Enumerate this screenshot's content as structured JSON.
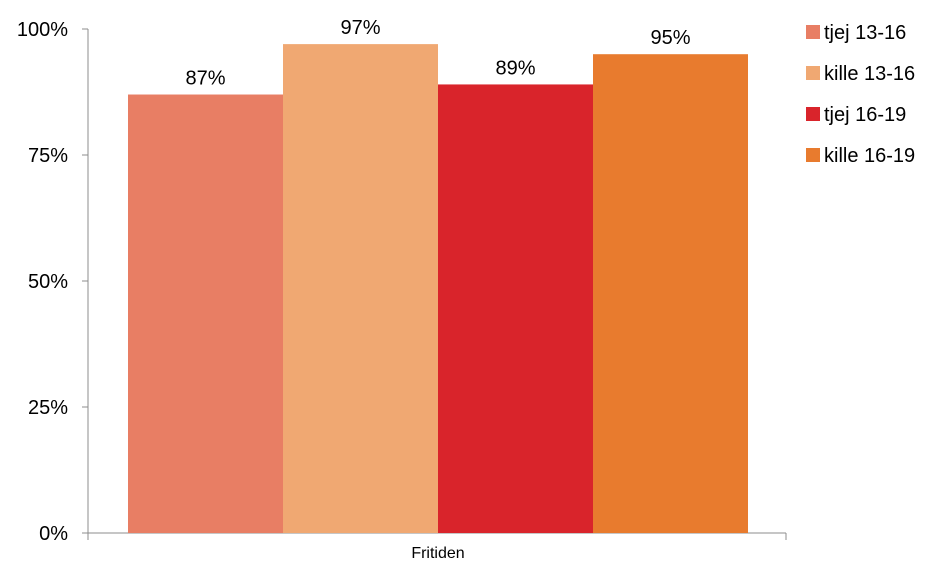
{
  "chart_data": {
    "type": "bar",
    "categories": [
      "Fritiden"
    ],
    "series": [
      {
        "name": "tjej 13-16",
        "color": "#E87E64",
        "values": [
          87
        ],
        "label": "87%"
      },
      {
        "name": "kille 13-16",
        "color": "#F0A872",
        "values": [
          97
        ],
        "label": "97%"
      },
      {
        "name": "tjej 16-19",
        "color": "#D9242B",
        "values": [
          89
        ],
        "label": "89%"
      },
      {
        "name": "kille 16-19",
        "color": "#E87B2E",
        "values": [
          95
        ],
        "label": "95%"
      }
    ],
    "ylim": [
      0,
      100
    ],
    "y_ticks": [
      {
        "value": 0,
        "label": "0%"
      },
      {
        "value": 25,
        "label": "25%"
      },
      {
        "value": 50,
        "label": "50%"
      },
      {
        "value": 75,
        "label": "75%"
      },
      {
        "value": 100,
        "label": "100%"
      }
    ],
    "grid": false,
    "legend_position": "right",
    "title": "",
    "xlabel": "",
    "ylabel": ""
  }
}
